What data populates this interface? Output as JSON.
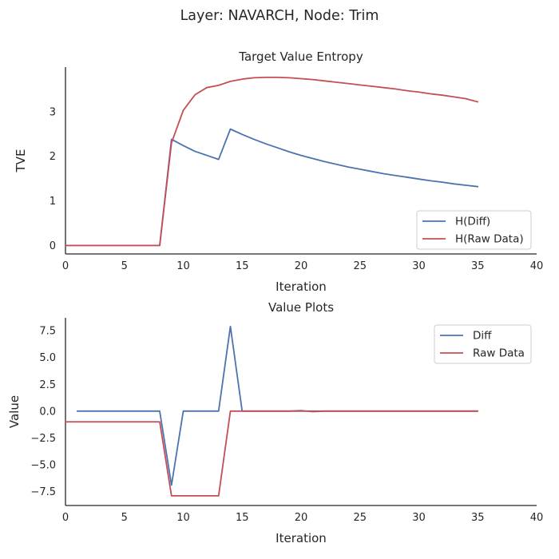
{
  "figure_title": "Layer: NAVARCH, Node: Trim",
  "colors": {
    "diff": "#4c72b0",
    "raw": "#c44e52",
    "axis": "#262626"
  },
  "chart_data": [
    {
      "type": "line",
      "title": "Target Value Entropy",
      "xlabel": "Iteration",
      "ylabel": "TVE",
      "xlim": [
        0,
        40
      ],
      "ylim": [
        -0.19,
        4.0
      ],
      "xticks": [
        0,
        5,
        10,
        15,
        20,
        25,
        30,
        35,
        40
      ],
      "yticks": [
        0,
        1,
        2,
        3
      ],
      "grid": false,
      "legend_position": "lower-right",
      "series": [
        {
          "name": "H(Diff)",
          "color": "#4c72b0",
          "x": [
            0,
            1,
            2,
            3,
            4,
            5,
            6,
            7,
            8,
            9,
            10,
            11,
            12,
            13,
            14,
            15,
            16,
            17,
            18,
            19,
            20,
            21,
            22,
            23,
            24,
            25,
            26,
            27,
            28,
            29,
            30,
            31,
            32,
            33,
            34,
            35
          ],
          "y": [
            0,
            0,
            0,
            0,
            0,
            0,
            0,
            0,
            0,
            2.38,
            2.24,
            2.11,
            2.02,
            1.93,
            2.61,
            2.49,
            2.38,
            2.28,
            2.19,
            2.1,
            2.02,
            1.95,
            1.88,
            1.82,
            1.76,
            1.71,
            1.66,
            1.61,
            1.57,
            1.53,
            1.49,
            1.45,
            1.42,
            1.38,
            1.35,
            1.32
          ]
        },
        {
          "name": "H(Raw Data)",
          "color": "#c44e52",
          "x": [
            0,
            1,
            2,
            3,
            4,
            5,
            6,
            7,
            8,
            9,
            10,
            11,
            12,
            13,
            14,
            15,
            16,
            17,
            18,
            19,
            20,
            21,
            22,
            23,
            24,
            25,
            26,
            27,
            28,
            29,
            30,
            31,
            32,
            33,
            34,
            35
          ],
          "y": [
            0,
            0,
            0,
            0,
            0,
            0,
            0,
            0,
            0,
            2.3,
            3.03,
            3.38,
            3.54,
            3.59,
            3.68,
            3.73,
            3.76,
            3.77,
            3.77,
            3.76,
            3.74,
            3.72,
            3.69,
            3.66,
            3.63,
            3.6,
            3.57,
            3.54,
            3.51,
            3.47,
            3.44,
            3.4,
            3.37,
            3.33,
            3.29,
            3.22
          ]
        }
      ]
    },
    {
      "type": "line",
      "title": "Value Plots",
      "xlabel": "Iteration",
      "ylabel": "Value",
      "xlim": [
        0,
        40
      ],
      "ylim": [
        -8.8,
        8.7
      ],
      "xticks": [
        0,
        5,
        10,
        15,
        20,
        25,
        30,
        35,
        40
      ],
      "yticks": [
        -7.5,
        -5.0,
        -2.5,
        0.0,
        2.5,
        5.0,
        7.5
      ],
      "ytick_labels": [
        "−7.5",
        "−5.0",
        "−2.5",
        "0.0",
        "2.5",
        "5.0",
        "7.5"
      ],
      "grid": false,
      "legend_position": "top-right",
      "series": [
        {
          "name": "Diff",
          "color": "#4c72b0",
          "x": [
            1,
            2,
            3,
            4,
            5,
            6,
            7,
            8,
            9,
            10,
            11,
            12,
            13,
            14,
            15,
            16,
            17,
            18,
            19,
            20,
            21,
            22,
            23,
            24,
            25,
            26,
            27,
            28,
            29,
            30,
            31,
            32,
            33,
            34,
            35
          ],
          "y": [
            0,
            0,
            0,
            0,
            0,
            0,
            0,
            0,
            -6.9,
            0,
            0,
            0,
            0,
            7.9,
            0,
            0,
            0,
            0,
            0,
            0,
            0,
            0,
            0,
            0,
            0,
            0,
            0,
            0,
            0,
            0,
            0,
            0,
            0,
            0,
            0
          ]
        },
        {
          "name": "Raw Data",
          "color": "#c44e52",
          "x": [
            0,
            1,
            2,
            3,
            4,
            5,
            6,
            7,
            8,
            9,
            10,
            11,
            12,
            13,
            14,
            15,
            16,
            17,
            18,
            19,
            20,
            21,
            22,
            23,
            24,
            25,
            26,
            27,
            28,
            29,
            30,
            31,
            32,
            33,
            34,
            35
          ],
          "y": [
            -1,
            -1,
            -1,
            -1,
            -1,
            -1,
            -1,
            -1,
            -1,
            -7.9,
            -7.9,
            -7.9,
            -7.9,
            -7.9,
            0,
            0,
            0,
            0,
            0,
            0,
            0.05,
            -0.05,
            0,
            0,
            0,
            0,
            0,
            0,
            0,
            0,
            0,
            0,
            0,
            0,
            0,
            0
          ]
        }
      ]
    }
  ]
}
